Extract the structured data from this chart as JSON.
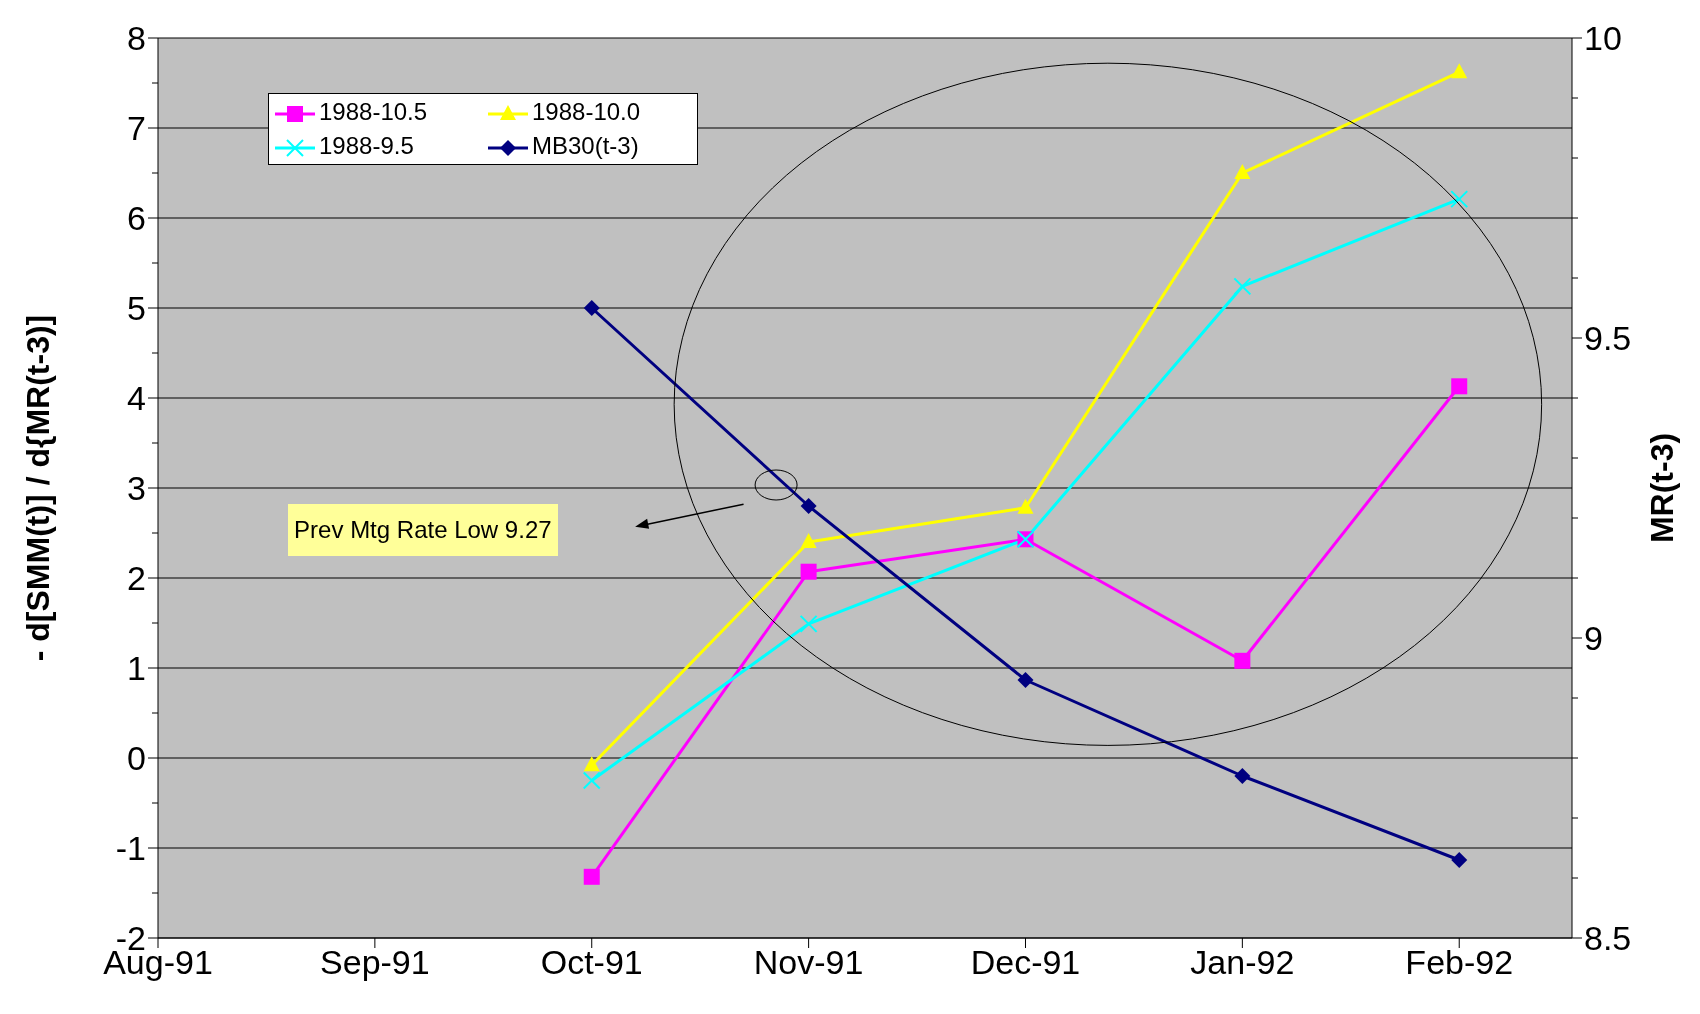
{
  "chart_data": {
    "type": "line",
    "categories": [
      "Aug-91",
      "Sep-91",
      "Oct-91",
      "Nov-91",
      "Dec-91",
      "Jan-92",
      "Feb-92"
    ],
    "series": [
      {
        "name": "1988-10.5",
        "color": "#ff00ff",
        "marker": "square",
        "values": [
          null,
          null,
          -1.32,
          2.07,
          2.43,
          1.08,
          4.13
        ]
      },
      {
        "name": "1988-10.0",
        "color": "#ffff00",
        "marker": "triangle",
        "values": [
          null,
          null,
          -0.08,
          2.4,
          2.78,
          6.5,
          7.62
        ]
      },
      {
        "name": "1988-9.5",
        "color": "#00ffff",
        "marker": "cross",
        "values": [
          null,
          null,
          -0.25,
          1.49,
          2.43,
          5.24,
          6.21
        ]
      },
      {
        "name": "MB30(t-3)",
        "color": "#000080",
        "marker": "diamond",
        "axis": "y2",
        "values": [
          null,
          null,
          9.55,
          9.22,
          8.93,
          8.77,
          8.63
        ]
      }
    ],
    "ylabel": "- d[SMM(t)] / d{MR(t-3)]",
    "y2label": "MR(t-3)",
    "ylim": [
      -2,
      8
    ],
    "yticks": [
      -2,
      -1,
      0,
      1,
      2,
      3,
      4,
      5,
      6,
      7,
      8
    ],
    "y2lim": [
      8.5,
      10
    ],
    "y2ticks": [
      8.5,
      9,
      9.5,
      10
    ],
    "grid": "y",
    "legend": "top left",
    "line_style": "solid",
    "annotations": [
      "Prev Mtg Rate Low 9.27"
    ]
  }
}
